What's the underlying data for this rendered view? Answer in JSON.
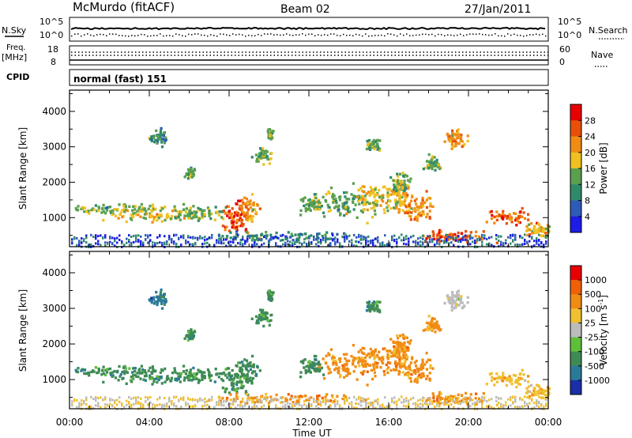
{
  "header": {
    "station": "McMurdo (fitACF)",
    "beam": "Beam 02",
    "date": "27/Jan/2011"
  },
  "noise_panel": {
    "left_label": "N.Sky",
    "right_label": "N.Search",
    "left_ticks": [
      "10^5",
      "10^0"
    ],
    "right_ticks": [
      "10^5",
      "10^0"
    ]
  },
  "freq_panel": {
    "left_label_1": "Freq.",
    "left_label_2": "[MHz]",
    "right_label": "Nave",
    "left_ticks": [
      "18",
      "8"
    ],
    "right_ticks": [
      "60",
      "0"
    ]
  },
  "cpid": {
    "label": "CPID",
    "value": "normal (fast) 151"
  },
  "chart_data": [
    {
      "type": "heatmap",
      "quantity": "power",
      "ylabel": "Slant Range [km]",
      "ylim": [
        180,
        4600
      ],
      "yticks": [
        1000,
        2000,
        3000,
        4000
      ],
      "xlim_hours": [
        0,
        24
      ],
      "colorbar": {
        "label": "Power [dB]",
        "ticks": [
          "28",
          "24",
          "20",
          "16",
          "12",
          "8",
          "4"
        ],
        "colors": [
          "#1c1ce6",
          "#2e5ab8",
          "#2f8a6a",
          "#5aa04f",
          "#f0c020",
          "#f08c14",
          "#e85008",
          "#e80000"
        ]
      }
    },
    {
      "type": "heatmap",
      "quantity": "velocity",
      "ylabel": "Slant Range [km]",
      "ylim": [
        180,
        4600
      ],
      "yticks": [
        1000,
        2000,
        3000,
        4000
      ],
      "xlim_hours": [
        0,
        24
      ],
      "xticks": [
        "00:00",
        "04:00",
        "08:00",
        "12:00",
        "16:00",
        "20:00",
        "00:00"
      ],
      "xlabel": "Time UT",
      "colorbar": {
        "label": "Velocity [m s",
        "label_sup": "-1",
        "label_end": "]",
        "ticks": [
          "1000",
          "500",
          "100",
          "25",
          "-25",
          "-100",
          "-500",
          "-1000"
        ],
        "colors": [
          "#1a2fa8",
          "#2a7a9a",
          "#3f8a55",
          "#5fbf3a",
          "#bcbcbc",
          "#f0c030",
          "#f08c14",
          "#f06008",
          "#e80000"
        ]
      }
    }
  ]
}
